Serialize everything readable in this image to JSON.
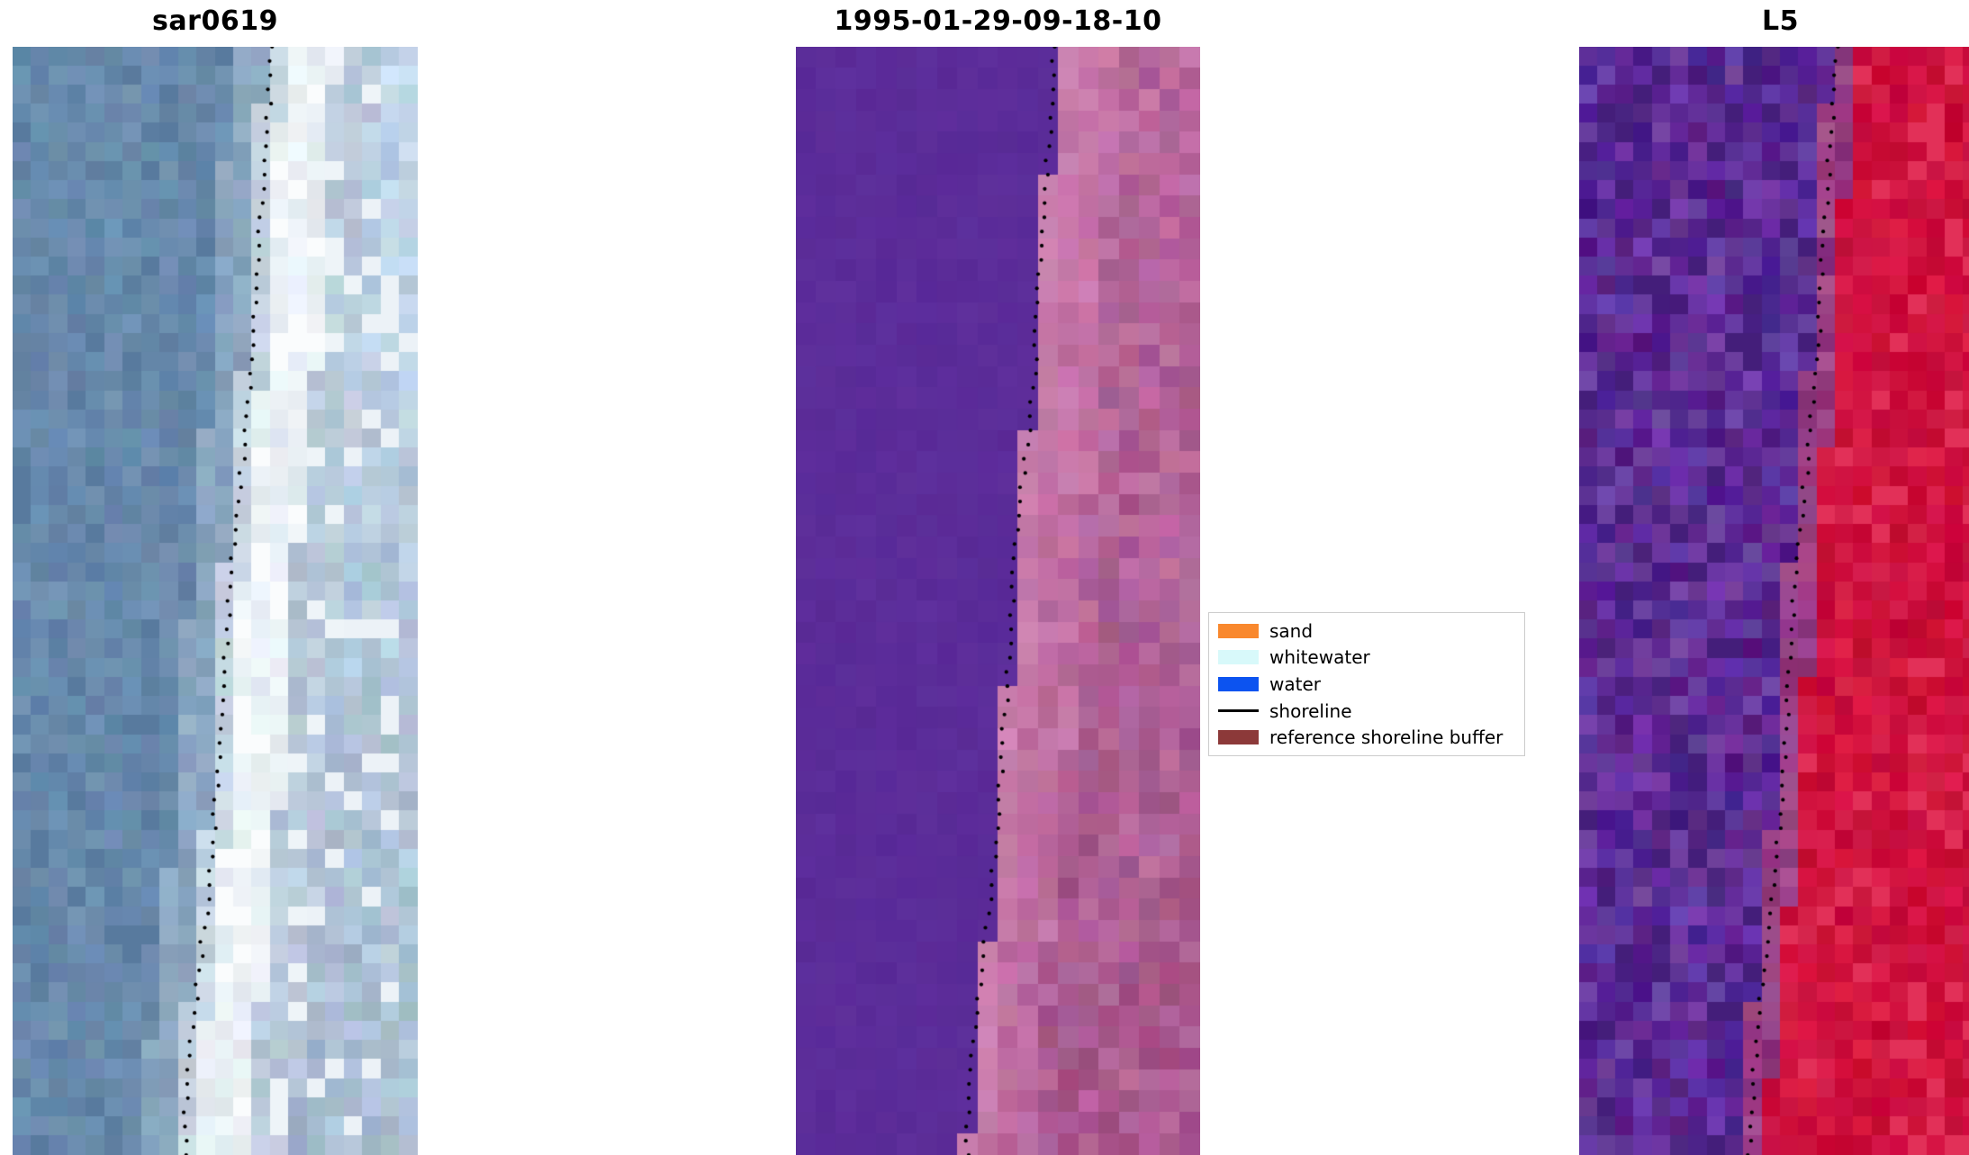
{
  "figure": {
    "background": "#ffffff"
  },
  "legend": {
    "items": [
      {
        "label": "sand",
        "color": "#f9882d",
        "swatch": "patch"
      },
      {
        "label": "whitewater",
        "color": "#d8f9fa",
        "swatch": "patch"
      },
      {
        "label": "water",
        "color": "#0c53f0",
        "swatch": "patch"
      },
      {
        "label": "shoreline",
        "color": "#000000",
        "swatch": "line"
      },
      {
        "label": "reference shoreline buffer",
        "color": "#8c3939",
        "swatch": "patch"
      }
    ]
  },
  "chart_data": {
    "type": "heatmap",
    "title": "",
    "xlabel": "",
    "ylabel": "",
    "axes": "off",
    "legend_position": "center right",
    "legend_entries": [
      "sand",
      "whitewater",
      "water",
      "shoreline",
      "reference shoreline buffer"
    ],
    "shoreline_dots": 78,
    "shoreline_path": [
      [
        0.0,
        0.64
      ],
      [
        0.06,
        0.632
      ],
      [
        0.12,
        0.618
      ],
      [
        0.18,
        0.606
      ],
      [
        0.24,
        0.598
      ],
      [
        0.3,
        0.588
      ],
      [
        0.36,
        0.572
      ],
      [
        0.42,
        0.552
      ],
      [
        0.48,
        0.538
      ],
      [
        0.54,
        0.528
      ],
      [
        0.6,
        0.518
      ],
      [
        0.66,
        0.506
      ],
      [
        0.72,
        0.494
      ],
      [
        0.78,
        0.478
      ],
      [
        0.84,
        0.458
      ],
      [
        0.9,
        0.44
      ],
      [
        0.96,
        0.428
      ],
      [
        1.0,
        0.424
      ]
    ],
    "panels": [
      {
        "id": "sar0619",
        "title": "sar0619",
        "description": "SAR backscatter image: water left, bright surf band along shoreline, beach right",
        "seed": 7,
        "cols": 22,
        "rows": 58,
        "quantize": 1,
        "zones": [
          {
            "until": -0.1,
            "color": [
              104,
              138,
              172
            ],
            "noise": 10,
            "speckle": {
              "prob": 0.06,
              "color": [
                88,
                122,
                158
              ]
            }
          },
          {
            "until": -0.02,
            "color": [
              138,
              166,
              192
            ],
            "noise": 11
          },
          {
            "until": 0.03,
            "color": [
              196,
              212,
              224
            ],
            "noise": 12
          },
          {
            "until": 0.16,
            "color": [
              233,
              240,
              245
            ],
            "noise": 8,
            "speckle": {
              "prob": 0.18,
              "color": [
                250,
                252,
                253
              ]
            }
          },
          {
            "until": 0.27,
            "color": [
              186,
              202,
              218
            ],
            "noise": 13,
            "speckle": {
              "prob": 0.1,
              "color": [
                238,
                244,
                248
              ]
            }
          },
          {
            "until": 9,
            "color": [
              168,
              188,
              208
            ],
            "noise": 14,
            "tgrad": 26,
            "speckle": {
              "prob": 0.12,
              "color": [
                236,
                242,
                247
              ]
            }
          }
        ]
      },
      {
        "id": "classified",
        "title": "1995-01-29-09-18-10",
        "description": "Classified image: water class over reference buffer (purple) left of shoreline, sand/whitewater over buffer (pink) right",
        "seed": 3,
        "cols": 20,
        "rows": 52,
        "quantize": 3,
        "zones": [
          {
            "until": 0,
            "color": [
              91,
              44,
              153
            ],
            "noise": 3
          },
          {
            "until": 0.05,
            "color": [
              201,
              127,
              173
            ],
            "noise": 9
          },
          {
            "until": 0.16,
            "color": [
              187,
              107,
              158
            ],
            "noise": 12,
            "tgrad": 10
          },
          {
            "until": 9,
            "color": [
              170,
              90,
              143
            ],
            "noise": 15,
            "tgrad": 14
          }
        ]
      },
      {
        "id": "l5",
        "title": "L5",
        "description": "Landsat 5 false-colour image: purple water left of shoreline, red land right",
        "seed": 11,
        "cols": 22,
        "rows": 58,
        "quantize": 1,
        "zones": [
          {
            "until": -0.02,
            "color": [
              93,
              44,
              150
            ],
            "noise": 21,
            "speckle": {
              "prob": 0.07,
              "color": [
                68,
                30,
                122
              ]
            }
          },
          {
            "until": 0.045,
            "color": [
              152,
              62,
              132
            ],
            "noise": 18
          },
          {
            "until": 9,
            "color": [
              207,
              18,
              62
            ],
            "noise": 13,
            "speckle": {
              "prob": 0.1,
              "color": [
                226,
                48,
                88
              ]
            }
          }
        ]
      }
    ]
  }
}
